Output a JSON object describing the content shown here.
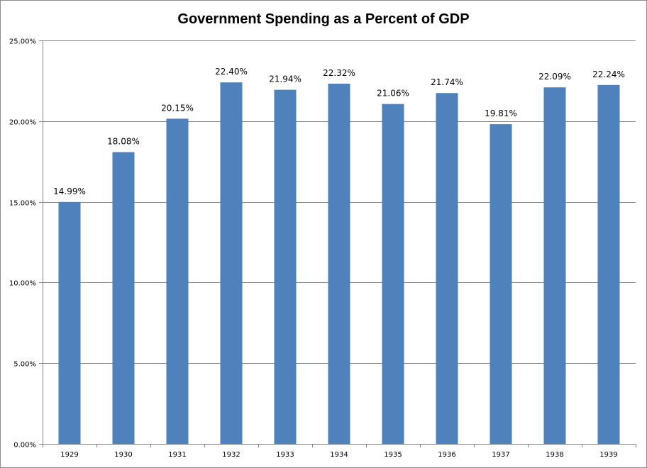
{
  "chart_data": {
    "type": "bar",
    "title": "Government Spending as a Percent of GDP",
    "xlabel": "",
    "ylabel": "",
    "categories": [
      "1929",
      "1930",
      "1931",
      "1932",
      "1933",
      "1934",
      "1935",
      "1936",
      "1937",
      "1938",
      "1939"
    ],
    "values": [
      14.99,
      18.08,
      20.15,
      22.4,
      21.94,
      22.32,
      21.06,
      21.74,
      19.81,
      22.09,
      22.24
    ],
    "data_labels": [
      "14.99%",
      "18.08%",
      "20.15%",
      "22.40%",
      "21.94%",
      "22.32%",
      "21.06%",
      "21.74%",
      "19.81%",
      "22.09%",
      "22.24%"
    ],
    "ylim": [
      0,
      25
    ],
    "yticks": [
      0,
      5,
      10,
      15,
      20,
      25
    ],
    "ytick_labels": [
      "0.00%",
      "5.00%",
      "10.00%",
      "15.00%",
      "20.00%",
      "25.00%"
    ],
    "grid": true,
    "legend": "none",
    "bar_color": "#4f81bd",
    "grid_color": "#868686"
  }
}
